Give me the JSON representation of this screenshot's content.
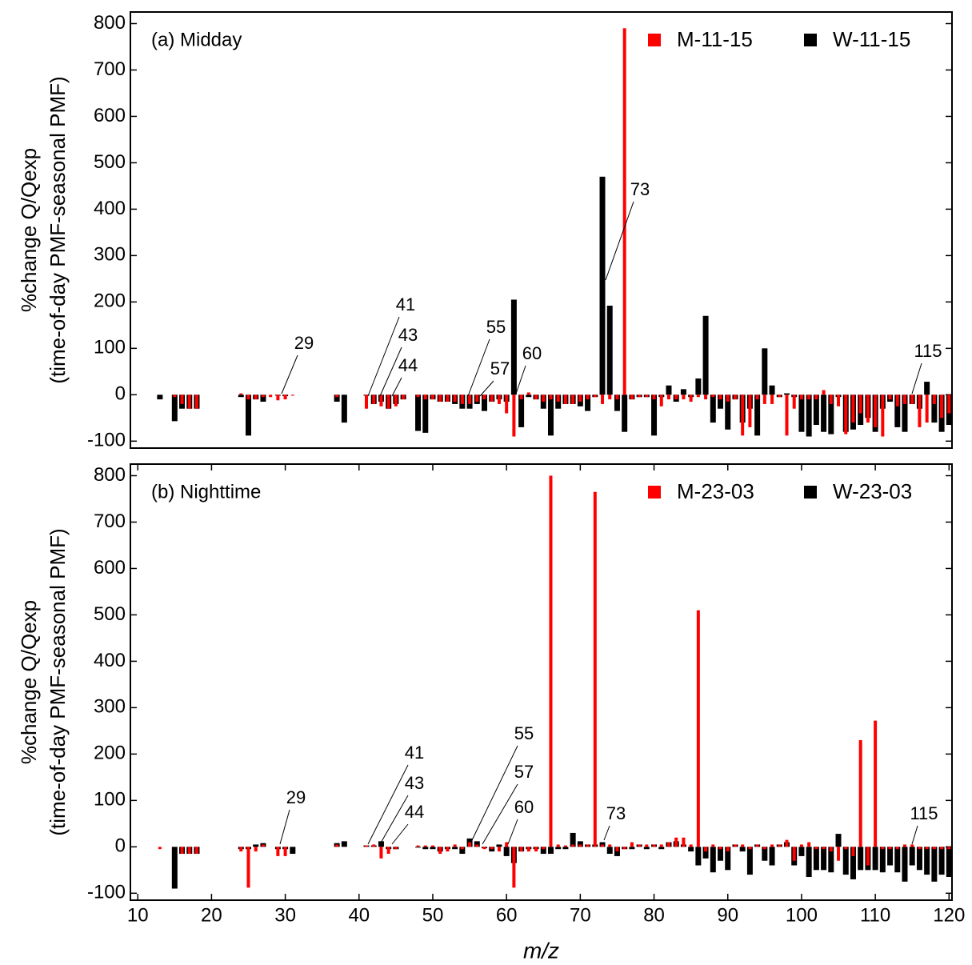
{
  "chart_data": [
    {
      "type": "bar",
      "title": "(a) Midday",
      "ylabel": [
        "%change Q/Qexp",
        "(time-of-day PMF-seasonal PMF)"
      ],
      "xlim": [
        9,
        120.4
      ],
      "ylim": [
        -115,
        825
      ],
      "yticks": [
        -100,
        0,
        100,
        200,
        300,
        400,
        500,
        600,
        700,
        800
      ],
      "legend": "upper right",
      "x": [
        13,
        15,
        16,
        17,
        18,
        24,
        25,
        26,
        27,
        28,
        29,
        30,
        31,
        37,
        38,
        41,
        42,
        43,
        44,
        45,
        46,
        48,
        49,
        50,
        51,
        52,
        53,
        54,
        55,
        56,
        57,
        58,
        59,
        60,
        61,
        62,
        63,
        64,
        65,
        66,
        67,
        68,
        69,
        70,
        71,
        72,
        73,
        74,
        75,
        76,
        77,
        78,
        79,
        80,
        81,
        82,
        83,
        84,
        85,
        86,
        87,
        88,
        89,
        90,
        91,
        92,
        93,
        94,
        95,
        96,
        97,
        98,
        99,
        100,
        101,
        102,
        103,
        104,
        105,
        106,
        107,
        108,
        109,
        110,
        111,
        112,
        113,
        114,
        115,
        116,
        117,
        118,
        119,
        120
      ],
      "series": [
        {
          "name": "M-11-15",
          "color": "#ff0000",
          "values": [
            null,
            -5,
            -20,
            -30,
            -30,
            3,
            -10,
            -10,
            -5,
            -5,
            -12,
            -10,
            -2,
            -5,
            null,
            -30,
            -20,
            -25,
            -30,
            -25,
            -10,
            -5,
            -10,
            -10,
            -15,
            -15,
            -15,
            -20,
            -20,
            -15,
            -10,
            -15,
            -20,
            -40,
            -90,
            -10,
            5,
            -10,
            -15,
            -10,
            -15,
            -20,
            -20,
            -15,
            -10,
            -5,
            -20,
            -10,
            -10,
            790,
            -10,
            -5,
            -5,
            -10,
            -25,
            -10,
            -10,
            -10,
            -15,
            -5,
            -10,
            -5,
            -10,
            -15,
            -10,
            -88,
            -70,
            -10,
            -20,
            -20,
            -5,
            -88,
            -30,
            -10,
            -10,
            -10,
            10,
            -20,
            -25,
            -85,
            -60,
            -40,
            -60,
            -70,
            -90,
            -10,
            -25,
            -20,
            -20,
            -70,
            -60,
            -20,
            -50,
            -40
          ]
        },
        {
          "name": "W-11-15",
          "color": "#000000",
          "values": [
            -10,
            -57,
            -30,
            -30,
            -30,
            -5,
            -88,
            -10,
            -15,
            null,
            -2,
            -3,
            null,
            -15,
            -60,
            -2,
            -20,
            -15,
            -30,
            -20,
            -10,
            -78,
            -82,
            -10,
            -15,
            -15,
            -20,
            -30,
            -30,
            -20,
            -35,
            -15,
            -10,
            -15,
            205,
            -70,
            -5,
            -10,
            -30,
            -88,
            -30,
            -20,
            -20,
            -25,
            -35,
            -5,
            470,
            192,
            -35,
            -80,
            -10,
            -5,
            -5,
            -88,
            -5,
            20,
            -15,
            12,
            -5,
            35,
            170,
            -60,
            -30,
            -75,
            -10,
            -60,
            -30,
            -88,
            100,
            20,
            -5,
            3,
            -5,
            -80,
            -90,
            -65,
            -80,
            -85,
            -5,
            -80,
            -75,
            -65,
            -50,
            -80,
            -30,
            -15,
            -70,
            -80,
            -20,
            -30,
            28,
            -60,
            -80,
            -65
          ]
        }
      ],
      "annotations": [
        29,
        41,
        43,
        44,
        55,
        57,
        60,
        73,
        115
      ]
    },
    {
      "type": "bar",
      "title": "(b) Nighttime",
      "ylabel": [
        "%change Q/Qexp",
        "(time-of-day PMF-seasonal PMF)"
      ],
      "xlabel": "m/z",
      "xlim": [
        9,
        120.4
      ],
      "ylim": [
        -115,
        825
      ],
      "xticks": [
        10,
        20,
        30,
        40,
        50,
        60,
        70,
        80,
        90,
        100,
        110,
        120
      ],
      "yticks": [
        -100,
        0,
        100,
        200,
        300,
        400,
        500,
        600,
        700,
        800
      ],
      "legend": "upper right",
      "x": [
        13,
        15,
        16,
        17,
        18,
        24,
        25,
        26,
        27,
        29,
        30,
        31,
        37,
        38,
        41,
        42,
        43,
        44,
        45,
        48,
        49,
        50,
        51,
        52,
        53,
        54,
        55,
        56,
        57,
        58,
        59,
        60,
        61,
        62,
        63,
        64,
        65,
        66,
        67,
        68,
        69,
        70,
        71,
        72,
        73,
        74,
        75,
        76,
        77,
        78,
        79,
        80,
        81,
        82,
        83,
        84,
        85,
        86,
        87,
        88,
        89,
        90,
        91,
        92,
        93,
        94,
        95,
        96,
        97,
        98,
        99,
        100,
        101,
        102,
        103,
        104,
        105,
        106,
        107,
        108,
        109,
        110,
        111,
        112,
        113,
        114,
        115,
        116,
        117,
        118,
        119,
        120
      ],
      "series": [
        {
          "name": "M-23-03",
          "color": "#ff0000",
          "values": [
            -5,
            null,
            -15,
            -15,
            -15,
            -10,
            -88,
            -10,
            5,
            -20,
            -20,
            null,
            5,
            null,
            3,
            5,
            -25,
            -15,
            -5,
            3,
            3,
            3,
            -15,
            -10,
            5,
            -5,
            10,
            5,
            -5,
            -5,
            -10,
            10,
            -88,
            -10,
            -10,
            -10,
            -5,
            800,
            5,
            3,
            5,
            5,
            5,
            765,
            5,
            5,
            -10,
            -5,
            10,
            5,
            5,
            5,
            5,
            10,
            20,
            20,
            5,
            510,
            -10,
            5,
            -5,
            -10,
            5,
            5,
            -5,
            5,
            -5,
            5,
            5,
            15,
            -30,
            5,
            10,
            -5,
            -5,
            -10,
            -30,
            -5,
            -20,
            230,
            -40,
            272,
            -5,
            -5,
            -5,
            5,
            5,
            -5,
            -5,
            -5,
            -5,
            -5
          ]
        },
        {
          "name": "W-23-03",
          "color": "#000000",
          "values": [
            null,
            -90,
            -15,
            -15,
            -15,
            -5,
            -5,
            5,
            8,
            -5,
            -5,
            -15,
            8,
            12,
            3,
            3,
            12,
            -5,
            -5,
            0,
            -5,
            -5,
            -10,
            -5,
            -5,
            -15,
            18,
            12,
            -3,
            -10,
            5,
            -20,
            -35,
            -10,
            -5,
            -5,
            -15,
            -15,
            -5,
            -5,
            30,
            12,
            5,
            5,
            10,
            -15,
            -20,
            -5,
            -5,
            5,
            -5,
            5,
            -5,
            10,
            12,
            5,
            -10,
            -40,
            -25,
            -55,
            -30,
            -50,
            5,
            -10,
            -60,
            5,
            -30,
            -40,
            5,
            10,
            -40,
            -20,
            -65,
            -50,
            -50,
            -55,
            28,
            -60,
            -70,
            -50,
            -50,
            -50,
            -55,
            -40,
            -55,
            -75,
            -40,
            -50,
            -60,
            -75,
            -60,
            -65
          ]
        }
      ],
      "annotations": [
        29,
        41,
        43,
        44,
        55,
        57,
        60,
        73,
        115
      ]
    }
  ]
}
